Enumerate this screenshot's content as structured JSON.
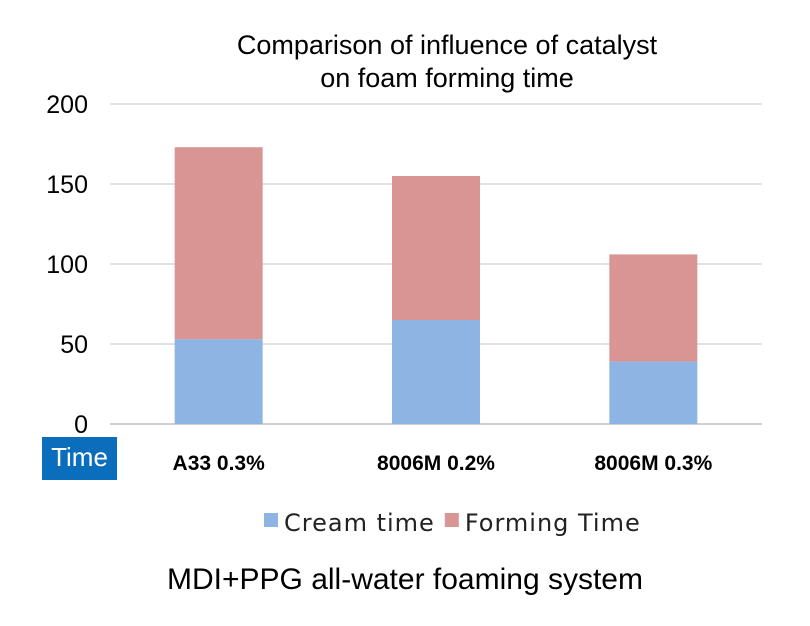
{
  "chart_data": {
    "type": "bar",
    "stacked": true,
    "title": [
      "Comparison of influence of catalyst",
      "on foam forming time"
    ],
    "ylabel": "Time",
    "xlabel": "",
    "categories": [
      "A33 0.3%",
      "8006M 0.2%",
      "8006M 0.3%"
    ],
    "series": [
      {
        "name": "Cream time",
        "color": "#8eb4e3",
        "values": [
          53,
          65,
          39
        ]
      },
      {
        "name": "Forming Time",
        "color": "#d99594",
        "values": [
          120,
          90,
          67
        ]
      }
    ],
    "ylim": [
      0,
      200
    ],
    "yticks": [
      "0",
      "50",
      "100",
      "150",
      "200"
    ],
    "grid": true,
    "legend_position": "bottom"
  },
  "caption": "MDI+PPG all-water foaming system"
}
